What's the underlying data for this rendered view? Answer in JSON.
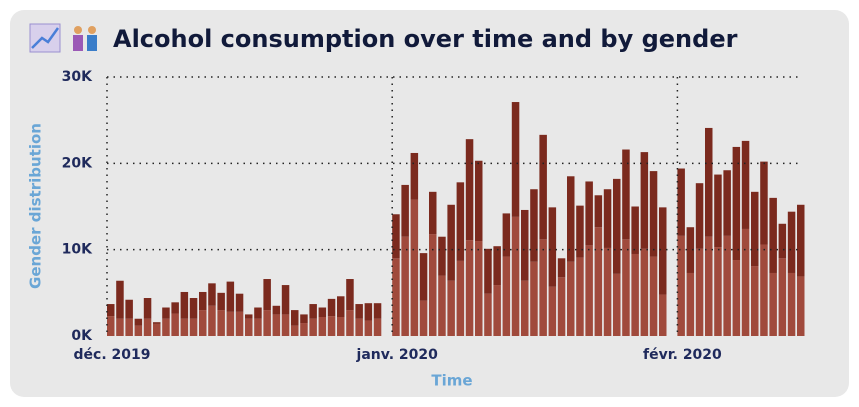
{
  "chart_data": {
    "type": "stacked_bar",
    "title": "Alcohol consumption over time and by gender",
    "ylabel": "Gender distribution",
    "xlabel": "Time",
    "categories": [
      "déc. 2019",
      null,
      null,
      null,
      null,
      null,
      null,
      null,
      null,
      null,
      null,
      null,
      null,
      null,
      null,
      null,
      null,
      null,
      null,
      null,
      null,
      null,
      null,
      null,
      null,
      null,
      null,
      null,
      null,
      null,
      null,
      "janv. 2020",
      null,
      null,
      null,
      null,
      null,
      null,
      null,
      null,
      null,
      null,
      null,
      null,
      null,
      null,
      null,
      null,
      null,
      null,
      null,
      null,
      null,
      null,
      null,
      null,
      null,
      null,
      null,
      null,
      null,
      null,
      "févr. 2020",
      null,
      null,
      null,
      null,
      null,
      null,
      null,
      null,
      null,
      null,
      null,
      null,
      null
    ],
    "series": [
      {
        "color": "#a04a3c",
        "values": [
          2300,
          2000,
          2000,
          1200,
          2000,
          1400,
          2000,
          2600,
          2000,
          2000,
          3000,
          3500,
          3000,
          2800,
          2800,
          2000,
          2000,
          3000,
          2500,
          2500,
          1200,
          1500,
          2000,
          2200,
          2300,
          2200,
          3000,
          2000,
          1800,
          2000,
          null,
          9000,
          11500,
          15800,
          4100,
          11800,
          7000,
          6400,
          8700,
          11100,
          11000,
          4900,
          5900,
          9200,
          13800,
          6400,
          8600,
          11200,
          5700,
          6800,
          8600,
          9100,
          10500,
          12600,
          10200,
          7200,
          11200,
          9500,
          10100,
          9200,
          4800,
          null,
          11600,
          7300,
          10100,
          11500,
          10300,
          11600,
          8800,
          12400,
          8100,
          10600,
          7300,
          9000,
          7300,
          6900
        ]
      },
      {
        "color": "#7b2a1e",
        "values": [
          1400,
          4400,
          2200,
          800,
          2400,
          200,
          1300,
          1300,
          3100,
          2400,
          2100,
          2600,
          2000,
          3500,
          2100,
          500,
          1300,
          3600,
          1000,
          3400,
          1800,
          1000,
          1700,
          1100,
          2000,
          2400,
          3600,
          1700,
          2000,
          1800,
          null,
          5100,
          6000,
          5400,
          5500,
          4900,
          4500,
          8800,
          9100,
          11700,
          9300,
          5200,
          4500,
          5000,
          13300,
          8200,
          8400,
          12100,
          9200,
          2200,
          9900,
          6000,
          7400,
          3700,
          6800,
          11000,
          10400,
          5500,
          11200,
          9900,
          10100,
          null,
          7800,
          5300,
          7600,
          12600,
          8400,
          7600,
          13100,
          10200,
          8600,
          9600,
          8700,
          4000,
          7100,
          8300
        ]
      }
    ],
    "ylim": [
      0,
      30000
    ],
    "yticks": [
      {
        "value": 0,
        "label": "0K"
      },
      {
        "value": 10000,
        "label": "10K"
      },
      {
        "value": 20000,
        "label": "20K"
      },
      {
        "value": 30000,
        "label": "30K"
      }
    ],
    "grid": true
  }
}
